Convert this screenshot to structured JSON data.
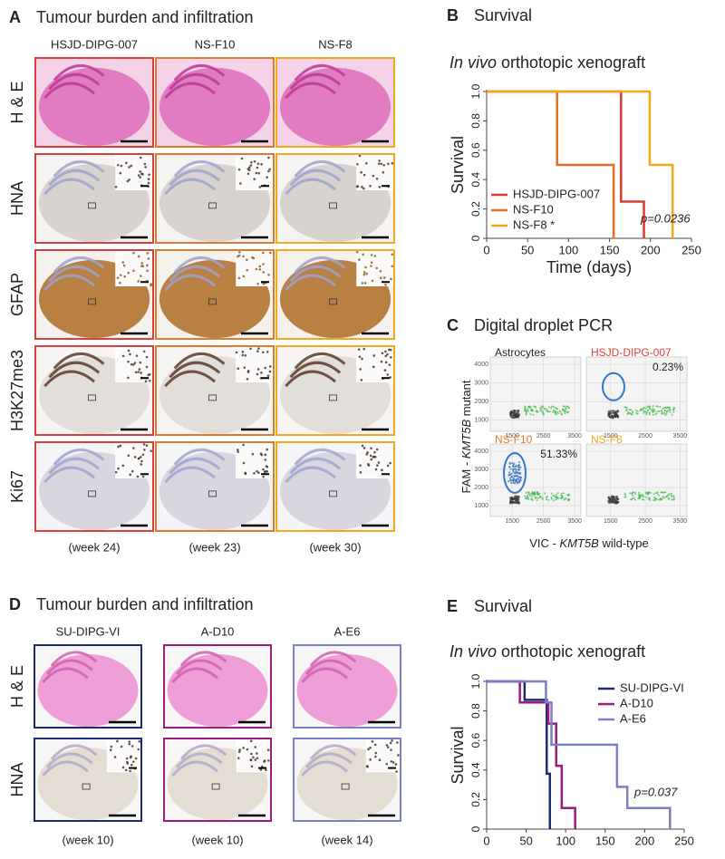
{
  "panel_a": {
    "label": "A",
    "title": "Tumour burden and infiltration",
    "columns": [
      "HSJD-DIPG-007",
      "NS-F10",
      "NS-F8"
    ],
    "colors": [
      "#d9403b",
      "#e07a2c",
      "#f2a91e"
    ],
    "rows": [
      "H & E",
      "HNA",
      "GFAP",
      "H3K27me3",
      "Ki67"
    ],
    "timepoints": [
      "(week 24)",
      "(week 23)",
      "(week 30)"
    ]
  },
  "panel_c": {
    "label": "C",
    "title": "Digital droplet PCR",
    "plots": [
      {
        "name": "Astrocytes",
        "color": "#222222"
      },
      {
        "name": "HSJD-DIPG-007",
        "color": "#d9403b",
        "percent": "0.23%"
      },
      {
        "name": "NS-F10",
        "color": "#e07a2c",
        "percent": "51.33%"
      },
      {
        "name": "NS-F8",
        "color": "#f2a91e"
      }
    ],
    "xlim": [
      800,
      3700
    ],
    "ylim": [
      400,
      4400
    ],
    "xticks": [
      1500,
      2500,
      3500
    ],
    "yticks": [
      1000,
      2000,
      3000,
      4000
    ],
    "ylabel": [
      "FAM - ",
      "KMT5B",
      " mutant"
    ],
    "xlabel": [
      "VIC - ",
      "KMT5B",
      " wild-type"
    ]
  },
  "panel_d": {
    "label": "D",
    "title": "Tumour burden and infiltration",
    "columns": [
      "SU-DIPG-VI",
      "A-D10",
      "A-E6"
    ],
    "colors": [
      "#1f2a6e",
      "#9b1b7e",
      "#7b7fc4"
    ],
    "rows": [
      "H & E",
      "HNA"
    ],
    "timepoints": [
      "(week 10)",
      "(week 10)",
      "(week 14)"
    ]
  },
  "chart_data": [
    {
      "type": "line",
      "panel_label": "B",
      "title": "Survival",
      "subtitle": [
        "In vivo",
        " orthotopic xenograft"
      ],
      "xlabel": "Time (days)",
      "ylabel": "Survival",
      "xlim": [
        0,
        250
      ],
      "xticks": [
        0,
        50,
        100,
        150,
        200,
        250
      ],
      "ylim": [
        0,
        1
      ],
      "yticks": [
        0,
        0.2,
        0.4,
        0.6,
        0.8,
        {
          "value": 1,
          "label": "1.0"
        }
      ],
      "legend": "lower left",
      "annotation": "p=0.0236",
      "series": [
        {
          "name": "HSJD-DIPG-007",
          "color": "#d63c33",
          "x": [
            0,
            164,
            164,
            192,
            192
          ],
          "values": [
            1,
            1,
            0.25,
            0.25,
            0
          ]
        },
        {
          "name": "NS-F10",
          "color": "#e07024",
          "x": [
            0,
            86,
            86,
            155,
            155
          ],
          "values": [
            1,
            1,
            0.5,
            0.5,
            0
          ]
        },
        {
          "name": "NS-F8 *",
          "color": "#f5a81c",
          "x": [
            0,
            199,
            199,
            227,
            227
          ],
          "values": [
            1,
            1,
            0.5,
            0.5,
            0
          ]
        }
      ]
    },
    {
      "type": "line",
      "panel_label": "E",
      "title": "Survival",
      "subtitle": [
        "In vivo",
        " orthotopic xenograft"
      ],
      "ylabel": "Survival",
      "xlim": [
        0,
        250
      ],
      "xticks": [
        0,
        50,
        100,
        150,
        200,
        250
      ],
      "ylim": [
        0,
        1
      ],
      "yticks": [
        0,
        0.2,
        0.4,
        0.6,
        0.8,
        {
          "value": 1,
          "label": "1.0"
        }
      ],
      "legend": "upper right",
      "annotation": "p=0.037",
      "series": [
        {
          "name": "SU-DIPG-VI",
          "color": "#1f2a6e",
          "x": [
            0,
            48,
            48,
            76,
            76,
            80,
            80
          ],
          "values": [
            1,
            1,
            0.875,
            0.875,
            0.375,
            0.375,
            0
          ]
        },
        {
          "name": "A-D10",
          "color": "#9b1b7e",
          "x": [
            0,
            42,
            42,
            78,
            78,
            88,
            88,
            95,
            95,
            112,
            112
          ],
          "values": [
            1,
            1,
            0.857,
            0.857,
            0.714,
            0.714,
            0.429,
            0.429,
            0.143,
            0.143,
            0
          ]
        },
        {
          "name": "A-E6",
          "color": "#7b7fc4",
          "x": [
            0,
            75,
            75,
            82,
            82,
            165,
            165,
            178,
            178,
            232,
            232
          ],
          "values": [
            1,
            1,
            0.857,
            0.857,
            0.571,
            0.571,
            0.286,
            0.286,
            0.143,
            0.143,
            0
          ]
        }
      ]
    }
  ]
}
